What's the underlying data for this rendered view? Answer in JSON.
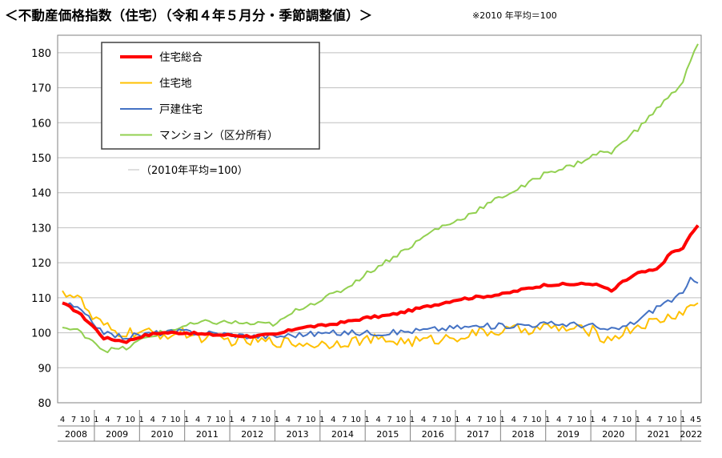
{
  "header": {
    "title": "＜不動産価格指数（住宅）（令和４年５月分・季節調整値）＞",
    "note": "※2010 年平均＝100"
  },
  "chart_data": {
    "type": "line",
    "x_unit": "month",
    "x_start": "2008-04",
    "x_end": "2022-05",
    "ylim": [
      80,
      185
    ],
    "yticks": [
      80,
      90,
      100,
      110,
      120,
      130,
      140,
      150,
      160,
      170,
      180
    ],
    "month_tick_labels": [
      "4",
      "7",
      "10",
      "1"
    ],
    "final_tick_labels": [
      "4",
      "5"
    ],
    "years": [
      "2008",
      "2009",
      "2010",
      "2011",
      "2012",
      "2013",
      "2014",
      "2015",
      "2016",
      "2017",
      "2018",
      "2019",
      "2020",
      "2021",
      "2022"
    ],
    "annotation": "（2010年平均=100）",
    "grid": true,
    "legend_position": "top-left",
    "series": [
      {
        "name": "住宅総合",
        "color": "#ff0000",
        "anchors": [
          [
            "2008-04",
            108.5
          ],
          [
            "2008-08",
            106
          ],
          [
            "2008-12",
            102
          ],
          [
            "2009-03",
            98.5
          ],
          [
            "2009-09",
            97.5
          ],
          [
            "2010-01",
            99
          ],
          [
            "2010-06",
            100
          ],
          [
            "2011-01",
            100
          ],
          [
            "2011-06",
            99.5
          ],
          [
            "2012-01",
            99.3
          ],
          [
            "2012-06",
            99
          ],
          [
            "2013-01",
            99.5
          ],
          [
            "2013-07",
            101.5
          ],
          [
            "2014-01",
            102
          ],
          [
            "2014-07",
            103
          ],
          [
            "2015-01",
            104.3
          ],
          [
            "2015-07",
            105
          ],
          [
            "2016-01",
            106.5
          ],
          [
            "2016-07",
            108
          ],
          [
            "2017-01",
            109.5
          ],
          [
            "2017-07",
            110.3
          ],
          [
            "2018-01",
            111
          ],
          [
            "2018-07",
            112.5
          ],
          [
            "2019-01",
            113.8
          ],
          [
            "2019-07",
            113.8
          ],
          [
            "2020-01",
            114
          ],
          [
            "2020-04",
            113
          ],
          [
            "2020-06",
            111.8
          ],
          [
            "2020-09",
            114.5
          ],
          [
            "2021-01",
            117
          ],
          [
            "2021-06",
            118
          ],
          [
            "2021-10",
            123
          ],
          [
            "2022-01",
            124
          ],
          [
            "2022-03",
            128
          ],
          [
            "2022-05",
            130.7
          ]
        ]
      },
      {
        "name": "住宅地",
        "color": "#ffc000",
        "anchors": [
          [
            "2008-04",
            112
          ],
          [
            "2008-06",
            111
          ],
          [
            "2008-08",
            110.5
          ],
          [
            "2008-12",
            104
          ],
          [
            "2009-06",
            100
          ],
          [
            "2010-01",
            100
          ],
          [
            "2010-06",
            99.5
          ],
          [
            "2011-01",
            99.8
          ],
          [
            "2011-06",
            98.5
          ],
          [
            "2012-01",
            97.8
          ],
          [
            "2012-06",
            97.5
          ],
          [
            "2013-01",
            97.5
          ],
          [
            "2013-07",
            97
          ],
          [
            "2014-01",
            96.8
          ],
          [
            "2014-07",
            97.5
          ],
          [
            "2015-01",
            98
          ],
          [
            "2015-07",
            97.8
          ],
          [
            "2016-01",
            97.5
          ],
          [
            "2016-07",
            98
          ],
          [
            "2017-01",
            99
          ],
          [
            "2017-07",
            100
          ],
          [
            "2018-01",
            100.5
          ],
          [
            "2018-07",
            101
          ],
          [
            "2019-01",
            101.5
          ],
          [
            "2019-07",
            101
          ],
          [
            "2020-01",
            100.5
          ],
          [
            "2020-05",
            98
          ],
          [
            "2020-09",
            100
          ],
          [
            "2021-01",
            102
          ],
          [
            "2021-07",
            103.5
          ],
          [
            "2022-01",
            106
          ],
          [
            "2022-05",
            108.5
          ]
        ]
      },
      {
        "name": "戸建住宅",
        "color": "#4472c4",
        "anchors": [
          [
            "2008-04",
            108.5
          ],
          [
            "2008-08",
            107
          ],
          [
            "2008-12",
            103
          ],
          [
            "2009-04",
            99.5
          ],
          [
            "2009-09",
            98.8
          ],
          [
            "2010-01",
            99.5
          ],
          [
            "2010-06",
            100
          ],
          [
            "2011-01",
            100.3
          ],
          [
            "2011-06",
            100
          ],
          [
            "2012-01",
            99.5
          ],
          [
            "2012-06",
            99
          ],
          [
            "2013-01",
            99
          ],
          [
            "2013-07",
            99.5
          ],
          [
            "2014-01",
            99.8
          ],
          [
            "2014-07",
            100
          ],
          [
            "2015-01",
            100
          ],
          [
            "2015-07",
            100
          ],
          [
            "2016-01",
            100.5
          ],
          [
            "2016-07",
            101
          ],
          [
            "2017-01",
            101.5
          ],
          [
            "2017-07",
            101.8
          ],
          [
            "2018-01",
            102
          ],
          [
            "2018-07",
            102.3
          ],
          [
            "2019-01",
            102.5
          ],
          [
            "2019-07",
            102.5
          ],
          [
            "2020-01",
            102
          ],
          [
            "2020-05",
            100.5
          ],
          [
            "2020-09",
            101.5
          ],
          [
            "2021-01",
            103.5
          ],
          [
            "2021-07",
            108
          ],
          [
            "2022-01",
            111
          ],
          [
            "2022-03",
            115
          ],
          [
            "2022-05",
            114.2
          ]
        ]
      },
      {
        "name": "マンション（区分所有）",
        "color": "#92d050",
        "anchors": [
          [
            "2008-04",
            101.5
          ],
          [
            "2008-08",
            100.5
          ],
          [
            "2008-12",
            98
          ],
          [
            "2009-03",
            95
          ],
          [
            "2009-09",
            95.5
          ],
          [
            "2010-01",
            98
          ],
          [
            "2010-06",
            100
          ],
          [
            "2011-01",
            102
          ],
          [
            "2011-06",
            103
          ],
          [
            "2012-01",
            103
          ],
          [
            "2012-06",
            102.5
          ],
          [
            "2013-01",
            102.5
          ],
          [
            "2013-07",
            107
          ],
          [
            "2014-01",
            109.5
          ],
          [
            "2014-07",
            112.5
          ],
          [
            "2015-01",
            117
          ],
          [
            "2015-07",
            121
          ],
          [
            "2016-01",
            125
          ],
          [
            "2016-07",
            129.5
          ],
          [
            "2017-01",
            132
          ],
          [
            "2017-07",
            135.5
          ],
          [
            "2018-01",
            139
          ],
          [
            "2018-07",
            142
          ],
          [
            "2019-01",
            146
          ],
          [
            "2019-07",
            147.5
          ],
          [
            "2020-01",
            150.5
          ],
          [
            "2020-04",
            152
          ],
          [
            "2020-06",
            151
          ],
          [
            "2020-09",
            155
          ],
          [
            "2021-01",
            158
          ],
          [
            "2021-06",
            164
          ],
          [
            "2021-10",
            168
          ],
          [
            "2022-01",
            172
          ],
          [
            "2022-03",
            178
          ],
          [
            "2022-05",
            182.5
          ]
        ]
      }
    ]
  }
}
